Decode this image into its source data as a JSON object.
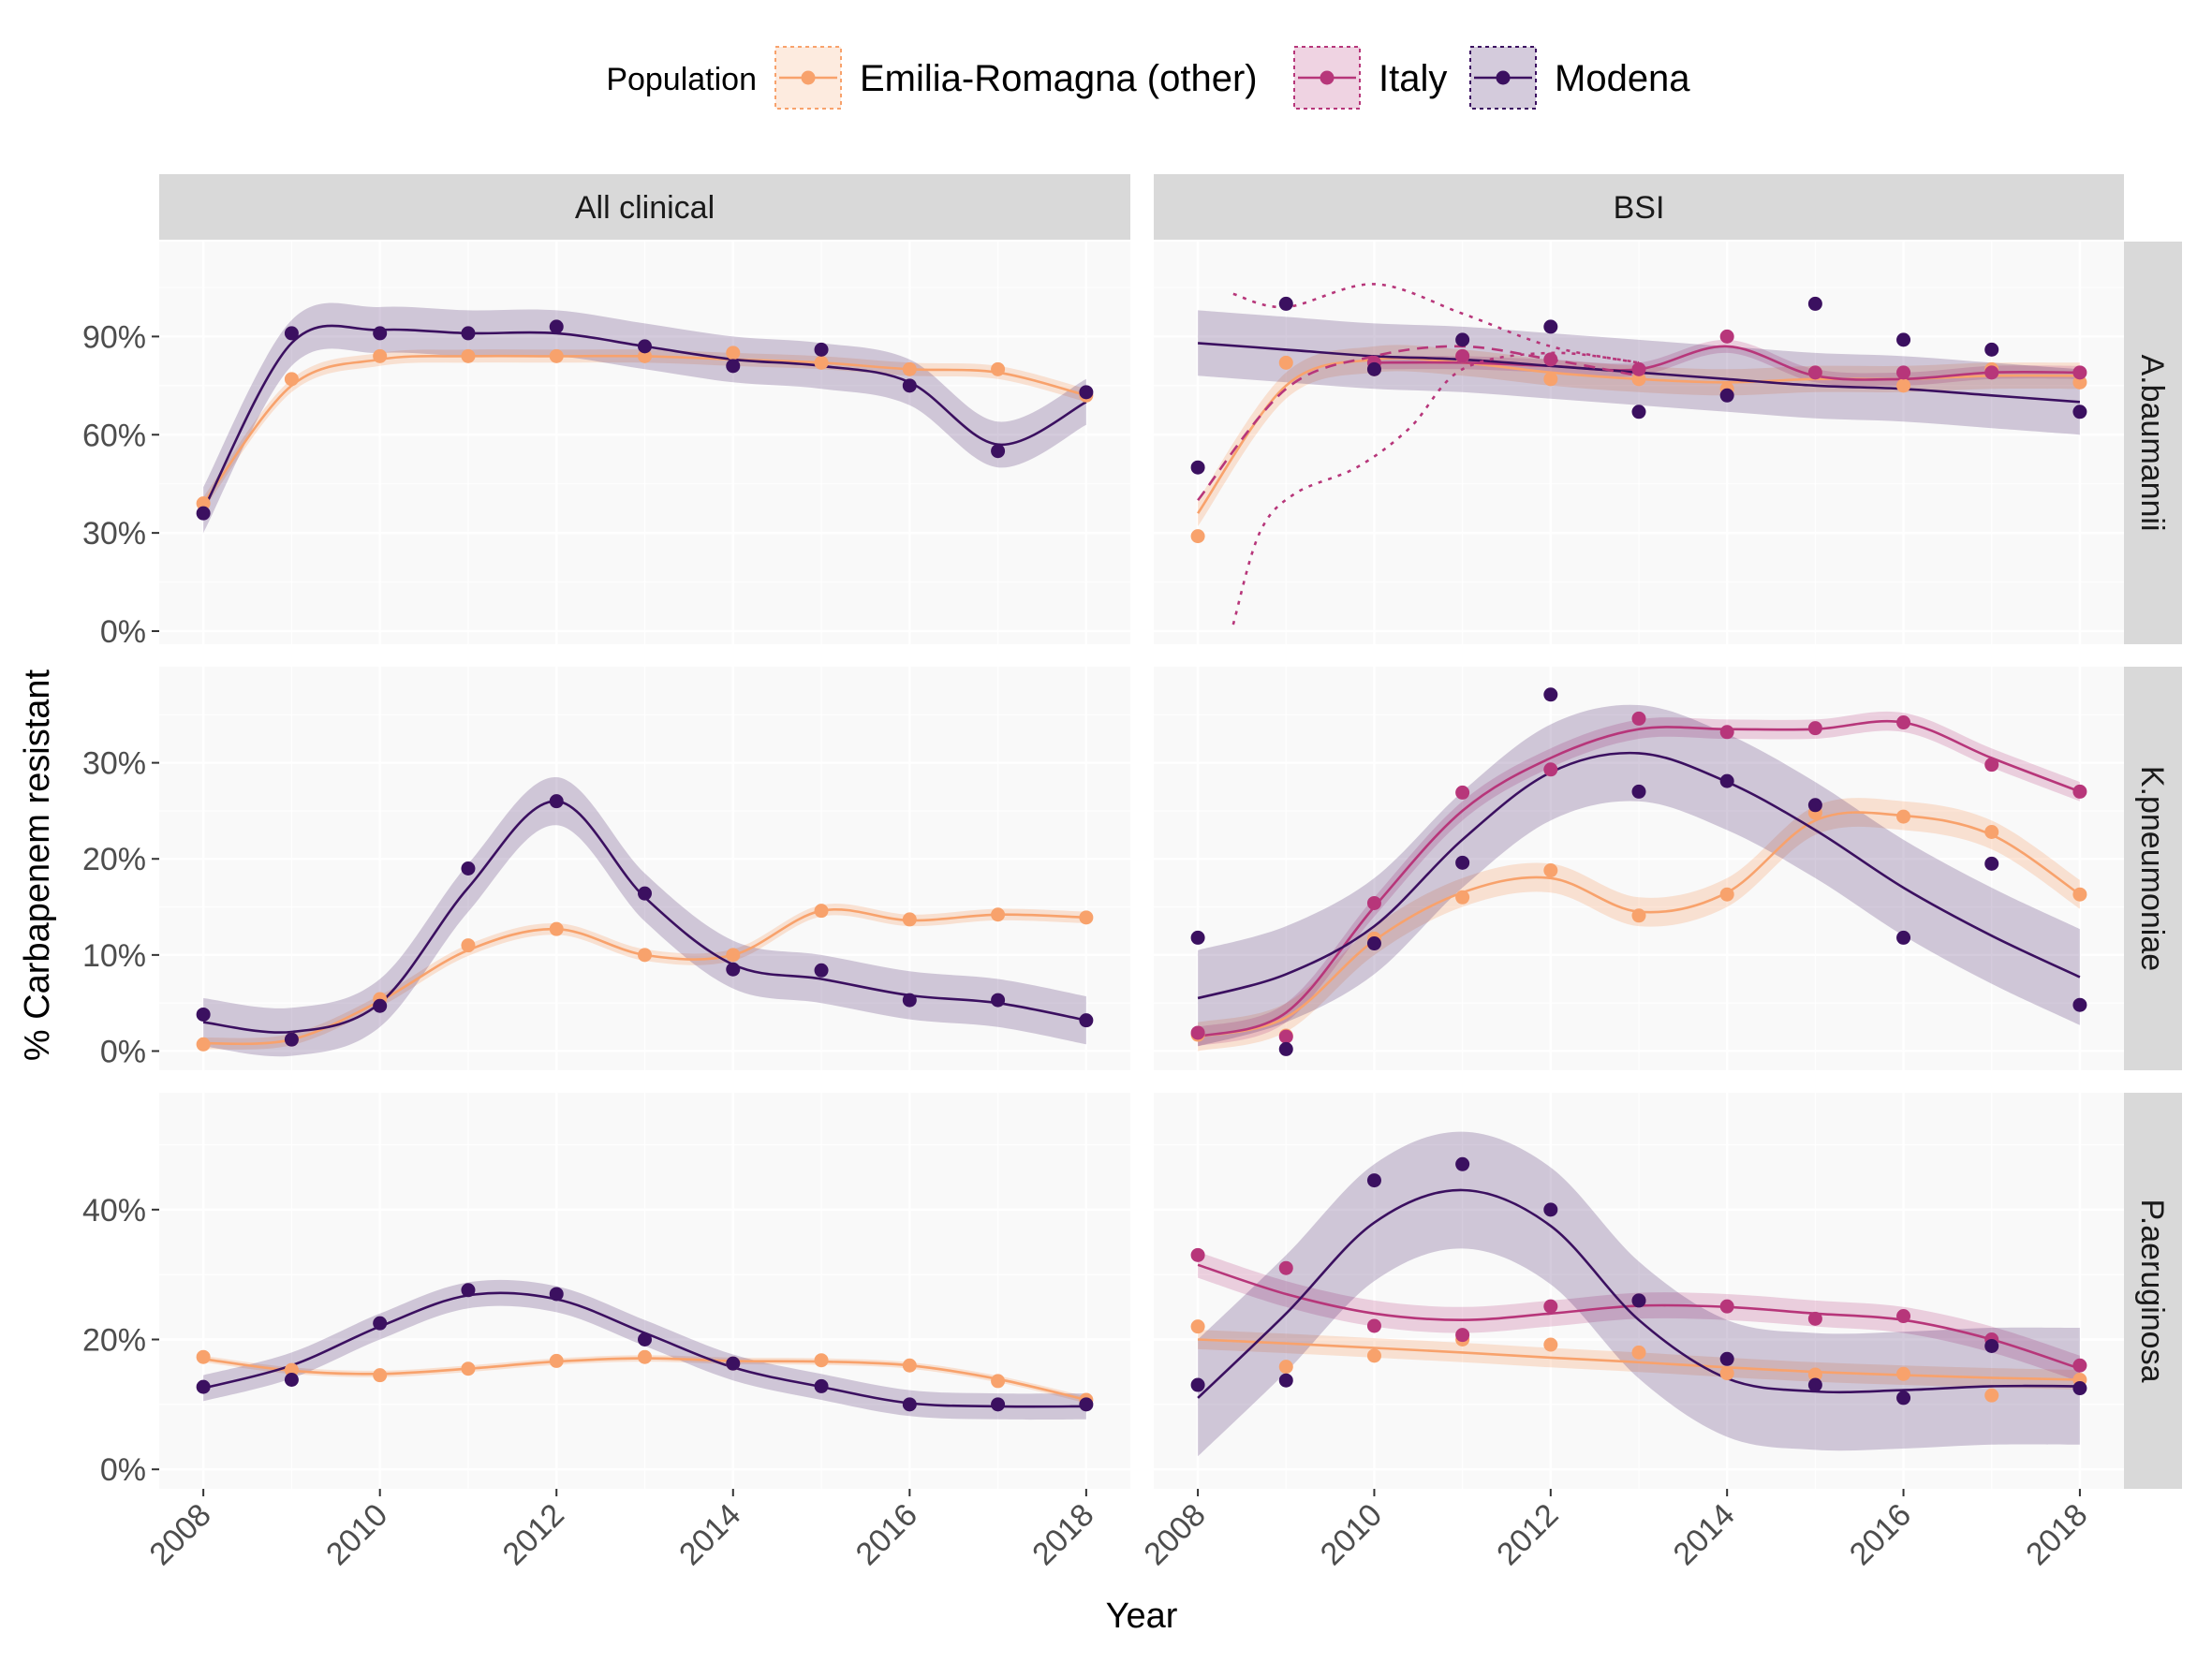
{
  "chart_data": {
    "type": "line",
    "subtype": "faceted scatter with smoothed trend lines and confidence ribbons",
    "xlabel": "Year",
    "ylabel": "% Carbapenem resistant",
    "x_ticks": [
      "2008",
      "2010",
      "2012",
      "2014",
      "2016",
      "2018"
    ],
    "xlim": [
      2007.5,
      2018.5
    ],
    "grid": true,
    "legend": {
      "title": "Population",
      "placement": "top",
      "entries": [
        {
          "name": "Emilia-Romagna (other)",
          "color": "#f8a26c"
        },
        {
          "name": "Italy",
          "color": "#b7367a"
        },
        {
          "name": "Modena",
          "color": "#3b1060"
        }
      ]
    },
    "columns": [
      "All clinical",
      "BSI"
    ],
    "rows": [
      "A.baumannii",
      "K.pneumoniae",
      "P.aeruginosa"
    ],
    "row_y_axes": [
      {
        "ylim": [
          -0.04,
          1.19
        ],
        "ticks": [
          0,
          0.3,
          0.6,
          0.9
        ],
        "tick_labels": [
          "0%",
          "30%",
          "60%",
          "90%"
        ]
      },
      {
        "ylim": [
          -0.02,
          0.4
        ],
        "ticks": [
          0,
          0.1,
          0.2,
          0.3
        ],
        "tick_labels": [
          "0%",
          "10%",
          "20%",
          "30%"
        ]
      },
      {
        "ylim": [
          -0.03,
          0.58
        ],
        "ticks": [
          0,
          0.2,
          0.4
        ],
        "tick_labels": [
          "0%",
          "20%",
          "40%"
        ]
      }
    ],
    "years": [
      2008,
      2009,
      2010,
      2011,
      2012,
      2013,
      2014,
      2015,
      2016,
      2017,
      2018
    ],
    "panels": [
      {
        "row": 0,
        "col": 0,
        "series": [
          {
            "name": "Emilia-Romagna (other)",
            "points": [
              0.39,
              0.77,
              0.84,
              0.84,
              0.84,
              0.84,
              0.85,
              0.82,
              0.8,
              0.8,
              0.72
            ],
            "fit": [
              0.39,
              0.75,
              0.83,
              0.84,
              0.84,
              0.84,
              0.83,
              0.82,
              0.8,
              0.79,
              0.72
            ],
            "band": 0.02
          },
          {
            "name": "Modena",
            "points": [
              0.36,
              0.91,
              0.91,
              0.91,
              0.93,
              0.87,
              0.81,
              0.86,
              0.75,
              0.55,
              0.73
            ],
            "fit": [
              0.37,
              0.88,
              0.92,
              0.91,
              0.91,
              0.87,
              0.83,
              0.81,
              0.76,
              0.57,
              0.7
            ],
            "band": 0.07
          }
        ]
      },
      {
        "row": 0,
        "col": 1,
        "series": [
          {
            "name": "Emilia-Romagna (other)",
            "points": [
              0.29,
              0.82,
              0.8,
              0.84,
              0.77,
              0.77,
              0.74,
              0.79,
              0.75,
              0.8,
              0.76
            ],
            "fit": [
              0.36,
              0.75,
              0.83,
              0.82,
              0.79,
              0.77,
              0.76,
              0.77,
              0.77,
              0.78,
              0.78
            ],
            "band": 0.04
          },
          {
            "name": "Italy",
            "points": [
              null,
              null,
              0.82,
              0.84,
              0.83,
              0.8,
              0.9,
              0.79,
              0.79,
              0.79,
              0.79
            ],
            "fit": [
              null,
              null,
              0.82,
              0.82,
              0.81,
              0.8,
              0.87,
              0.78,
              0.77,
              0.79,
              0.79
            ],
            "band": 0.02
          },
          {
            "name": "Modena",
            "points": [
              0.5,
              1.0,
              0.8,
              0.89,
              0.93,
              0.67,
              0.72,
              1.0,
              0.89,
              0.86,
              0.67
            ],
            "fit": [
              0.88,
              0.86,
              0.84,
              0.83,
              0.81,
              0.79,
              0.77,
              0.75,
              0.74,
              0.72,
              0.7
            ],
            "band": 0.1
          },
          {
            "name": "Italy",
            "style": "dashed",
            "x": [
              2008,
              2009,
              2010,
              2011,
              2012,
              2013
            ],
            "fit": [
              0.4,
              0.74,
              0.84,
              0.87,
              0.83,
              0.78
            ]
          },
          {
            "name": "Italy",
            "style": "dotted",
            "x": [
              2008.4,
              2009,
              2010,
              2011,
              2012,
              2013
            ],
            "fit": [
              1.03,
              0.99,
              1.06,
              0.97,
              0.87,
              0.82
            ]
          },
          {
            "name": "Italy",
            "style": "dotted",
            "x": [
              2008.4,
              2008.7,
              2009.1,
              2009.8,
              2010.4,
              2011,
              2012,
              2013
            ],
            "fit": [
              0.02,
              0.3,
              0.42,
              0.5,
              0.62,
              0.8,
              0.85,
              0.82
            ]
          }
        ]
      },
      {
        "row": 1,
        "col": 0,
        "series": [
          {
            "name": "Emilia-Romagna (other)",
            "points": [
              0.007,
              0.012,
              0.054,
              0.11,
              0.127,
              0.1,
              0.1,
              0.146,
              0.137,
              0.142,
              0.139
            ],
            "fit": [
              0.008,
              0.012,
              0.052,
              0.105,
              0.127,
              0.1,
              0.1,
              0.146,
              0.136,
              0.142,
              0.139
            ],
            "band": 0.006
          },
          {
            "name": "Modena",
            "points": [
              0.038,
              0.012,
              0.047,
              0.19,
              0.26,
              0.164,
              0.085,
              0.084,
              0.053,
              0.053,
              0.032
            ],
            "fit": [
              0.03,
              0.02,
              0.05,
              0.17,
              0.26,
              0.16,
              0.09,
              0.075,
              0.058,
              0.05,
              0.032
            ],
            "band": 0.025
          }
        ]
      },
      {
        "row": 1,
        "col": 1,
        "series": [
          {
            "name": "Emilia-Romagna (other)",
            "points": [
              0.017,
              0.016,
              0.117,
              0.16,
              0.188,
              0.141,
              0.163,
              0.248,
              0.244,
              0.228,
              0.163
            ],
            "fit": [
              0.015,
              0.035,
              0.115,
              0.165,
              0.18,
              0.145,
              0.165,
              0.24,
              0.245,
              0.225,
              0.163
            ],
            "band": 0.015
          },
          {
            "name": "Italy",
            "points": [
              0.019,
              0.015,
              0.154,
              0.269,
              0.293,
              0.346,
              0.332,
              0.336,
              0.342,
              0.298,
              0.27
            ],
            "fit": [
              0.015,
              0.04,
              0.15,
              0.25,
              0.305,
              0.335,
              0.335,
              0.335,
              0.342,
              0.305,
              0.27
            ],
            "band": 0.01
          },
          {
            "name": "Modena",
            "points": [
              0.118,
              0.002,
              0.112,
              0.196,
              0.371,
              0.27,
              0.281,
              0.256,
              0.118,
              0.195,
              0.048
            ],
            "fit": [
              0.055,
              0.08,
              0.13,
              0.22,
              0.29,
              0.31,
              0.28,
              0.23,
              0.17,
              0.12,
              0.077
            ],
            "band": 0.05
          }
        ]
      },
      {
        "row": 2,
        "col": 0,
        "series": [
          {
            "name": "Emilia-Romagna (other)",
            "points": [
              0.173,
              0.153,
              0.145,
              0.155,
              0.167,
              0.173,
              0.163,
              0.168,
              0.16,
              0.136,
              0.107
            ],
            "fit": [
              0.17,
              0.152,
              0.147,
              0.155,
              0.166,
              0.171,
              0.167,
              0.166,
              0.16,
              0.139,
              0.107
            ],
            "band": 0.005
          },
          {
            "name": "Modena",
            "points": [
              0.127,
              0.138,
              0.225,
              0.276,
              0.27,
              0.2,
              0.163,
              0.128,
              0.1,
              0.1,
              0.1
            ],
            "fit": [
              0.125,
              0.16,
              0.22,
              0.268,
              0.262,
              0.21,
              0.157,
              0.127,
              0.102,
              0.097,
              0.097
            ],
            "band": 0.02
          }
        ]
      },
      {
        "row": 2,
        "col": 1,
        "series": [
          {
            "name": "Emilia-Romagna (other)",
            "points": [
              0.22,
              0.158,
              0.175,
              0.2,
              0.192,
              0.18,
              0.148,
              0.146,
              0.147,
              0.114,
              0.138
            ],
            "fit": [
              0.2,
              0.194,
              0.187,
              0.18,
              0.172,
              0.165,
              0.157,
              0.15,
              0.145,
              0.141,
              0.138
            ],
            "band": 0.015
          },
          {
            "name": "Italy",
            "points": [
              0.33,
              0.31,
              0.221,
              0.207,
              0.251,
              0.26,
              0.251,
              0.232,
              0.236,
              0.2,
              0.16
            ],
            "fit": [
              0.315,
              0.27,
              0.24,
              0.23,
              0.24,
              0.252,
              0.25,
              0.24,
              0.23,
              0.2,
              0.155
            ],
            "band": 0.02
          },
          {
            "name": "Modena",
            "points": [
              0.13,
              0.137,
              0.445,
              0.47,
              0.4,
              0.26,
              0.17,
              0.13,
              0.11,
              0.19,
              0.125
            ],
            "fit": [
              0.11,
              0.24,
              0.38,
              0.43,
              0.375,
              0.23,
              0.14,
              0.12,
              0.122,
              0.128,
              0.128
            ],
            "band": 0.09
          }
        ]
      }
    ]
  }
}
